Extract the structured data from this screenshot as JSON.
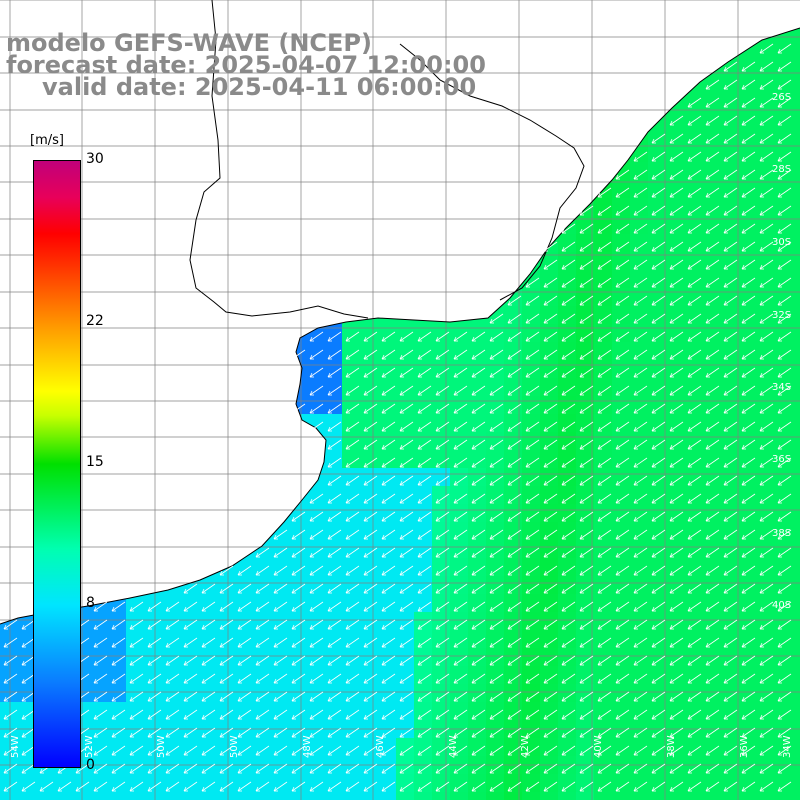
{
  "title": {
    "line1": "modelo GEFS-WAVE (NCEP)",
    "line2": "forecast date: 2025-04-07 12:00:00",
    "line3": "valid date: 2025-04-11 06:00:00"
  },
  "colorbar": {
    "unit": "[m/s]",
    "min": 0,
    "max": 30,
    "ticks": [
      {
        "label": "30",
        "value": 30
      },
      {
        "label": "22",
        "value": 22
      },
      {
        "label": "15",
        "value": 15
      },
      {
        "label": "8",
        "value": 8
      },
      {
        "label": "0",
        "value": 0
      }
    ]
  },
  "colors": {
    "land": "#ffffff",
    "grid": "#808080",
    "coast": "#000000",
    "arrow": "#ffffff",
    "title_text": "#8a8a8a"
  },
  "map": {
    "variable": "wind speed",
    "arrow_direction": "southwest",
    "longitude_labels": [
      "54W",
      "52W",
      "50W",
      "50W",
      "48W",
      "46W",
      "44W",
      "42W",
      "40W",
      "38W",
      "36W",
      "34W"
    ],
    "latitude_labels": [
      "26S",
      "28S",
      "30S",
      "32S",
      "34S",
      "36S",
      "38S",
      "40S"
    ]
  }
}
